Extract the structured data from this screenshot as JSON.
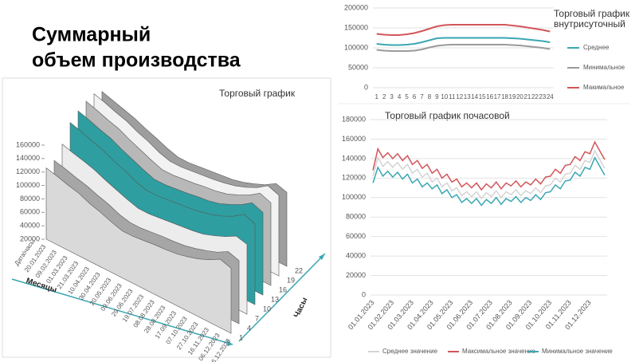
{
  "title_lines": [
    "Суммарный",
    "объем производства"
  ],
  "chart_data": [
    {
      "type": "surface",
      "title": "Торговый график",
      "corner_label": "Дата\\часы",
      "xlabel": "Месяцы",
      "ylabel": "Часы",
      "categories": [
        "20.01.2023",
        "09.02.2023",
        "01.03.2023",
        "21.03.2023",
        "10.04.2023",
        "30.04.2023",
        "20.05.2023",
        "09.06.2023",
        "29.06.2023",
        "19.07.2023",
        "08.08.2023",
        "28.08.2023",
        "17.09.2023",
        "07.10.2023",
        "27.10.2023",
        "16.11.2023",
        "06.12.2023",
        "26.12.2023"
      ],
      "zlim": [
        20000,
        160000
      ],
      "zticks": [
        20000,
        40000,
        60000,
        80000,
        100000,
        120000,
        140000,
        160000
      ],
      "series": [
        {
          "name": "1",
          "values": [
            126000,
            122000,
            117000,
            113000,
            106000,
            101000,
            95000,
            90000,
            90000,
            92000,
            94000,
            95000,
            97000,
            101000,
            106000,
            113000,
            122000,
            117000
          ]
        },
        {
          "name": "4",
          "values": [
            123000,
            119000,
            114000,
            110000,
            104000,
            99000,
            92000,
            88000,
            88000,
            90000,
            92000,
            93000,
            95000,
            99000,
            104000,
            110000,
            119000,
            114000
          ]
        },
        {
          "name": "7",
          "values": [
            133000,
            128000,
            124000,
            119000,
            112000,
            106000,
            100000,
            95000,
            95000,
            97000,
            99000,
            101000,
            103000,
            106000,
            112000,
            119000,
            128000,
            124000
          ]
        },
        {
          "name": "10",
          "values": [
            151000,
            146000,
            140000,
            135000,
            127000,
            121000,
            113000,
            108000,
            108000,
            110000,
            112000,
            114000,
            117000,
            121000,
            127000,
            135000,
            146000,
            140000
          ]
        },
        {
          "name": "13",
          "values": [
            154000,
            149000,
            143000,
            138000,
            130000,
            123000,
            116000,
            110000,
            110000,
            112000,
            114000,
            117000,
            119000,
            123000,
            130000,
            138000,
            149000,
            143000
          ]
        },
        {
          "name": "16",
          "values": [
            154000,
            149000,
            143000,
            138000,
            130000,
            123000,
            116000,
            110000,
            110000,
            112000,
            114000,
            117000,
            119000,
            123000,
            130000,
            138000,
            149000,
            143000
          ]
        },
        {
          "name": "19",
          "values": [
            151000,
            146000,
            140000,
            135000,
            127000,
            121000,
            113000,
            108000,
            108000,
            110000,
            112000,
            114000,
            117000,
            121000,
            127000,
            135000,
            146000,
            140000
          ]
        },
        {
          "name": "22",
          "values": [
            140000,
            135000,
            130000,
            125000,
            118000,
            112000,
            105000,
            100000,
            100000,
            102000,
            104000,
            106000,
            108000,
            112000,
            118000,
            125000,
            135000,
            130000
          ]
        }
      ]
    },
    {
      "type": "line",
      "title_lines": [
        "Торговый график",
        "внутрисуточный"
      ],
      "categories": [
        1,
        2,
        3,
        4,
        5,
        6,
        7,
        8,
        9,
        10,
        11,
        12,
        13,
        14,
        15,
        16,
        17,
        18,
        19,
        20,
        21,
        22,
        23,
        24
      ],
      "ylim": [
        0,
        200000
      ],
      "yticks": [
        0,
        50000,
        100000,
        150000,
        200000
      ],
      "grid": true,
      "legend": "right",
      "series": [
        {
          "name": "Среднее",
          "color": "#3aa7b2",
          "values": [
            110000,
            108000,
            107000,
            107000,
            108000,
            110000,
            114000,
            119000,
            124000,
            125000,
            125000,
            125000,
            125000,
            125000,
            125000,
            125000,
            125000,
            125000,
            124000,
            123000,
            121000,
            119000,
            117000,
            114000
          ]
        },
        {
          "name": "Минимальное",
          "color": "#9a9a9a",
          "values": [
            95000,
            93000,
            92000,
            92000,
            92000,
            93000,
            96000,
            101000,
            105000,
            107000,
            108000,
            108000,
            108000,
            108000,
            108000,
            108000,
            108000,
            108000,
            107000,
            106000,
            104000,
            102000,
            100000,
            97000
          ]
        },
        {
          "name": "Макимальное",
          "color": "#d2555a",
          "values": [
            135000,
            133000,
            132000,
            132000,
            134000,
            137000,
            142000,
            148000,
            154000,
            157000,
            158000,
            158000,
            158000,
            158000,
            158000,
            158000,
            158000,
            158000,
            156000,
            154000,
            151000,
            148000,
            145000,
            141000
          ]
        }
      ]
    },
    {
      "type": "line",
      "title": "Торговый график почасовой",
      "categories": [
        "01.01.2023",
        null,
        null,
        null,
        "01.02.2023",
        null,
        null,
        null,
        "01.03.2023",
        null,
        null,
        null,
        "01.04.2023",
        null,
        null,
        null,
        "01.05.2023",
        null,
        null,
        null,
        "01.06.2023",
        null,
        null,
        null,
        "01.07.2023",
        null,
        null,
        null,
        "01.08.2023",
        null,
        null,
        null,
        "01.09.2023",
        null,
        null,
        null,
        "01.10.2023",
        null,
        null,
        null,
        "01.11.2023",
        null,
        null,
        null,
        "01.12.2023",
        null,
        null,
        null
      ],
      "ylim": [
        0,
        180000
      ],
      "yticks": [
        0,
        20000,
        40000,
        60000,
        80000,
        100000,
        120000,
        140000,
        160000,
        180000
      ],
      "grid": true,
      "legend": "bottom",
      "series": [
        {
          "name": "Среднее значение",
          "color": "#d4d4d4",
          "values": [
            122000,
            141000,
            132000,
            137000,
            131000,
            136000,
            129000,
            134000,
            125000,
            129000,
            121000,
            125000,
            116000,
            120000,
            111000,
            115000,
            107000,
            110000,
            102000,
            106000,
            101000,
            106000,
            99000,
            105000,
            101000,
            107000,
            100000,
            106000,
            103000,
            108000,
            102000,
            107000,
            104000,
            110000,
            105000,
            112000,
            113000,
            120000,
            116000,
            124000,
            125000,
            133000,
            129000,
            138000,
            136000,
            148000,
            139000,
            130000
          ]
        },
        {
          "name": "Максимальное значение",
          "color": "#d2555a",
          "values": [
            128000,
            150000,
            141000,
            146000,
            140000,
            145000,
            138000,
            143000,
            134000,
            138000,
            130000,
            134000,
            125000,
            129000,
            120000,
            124000,
            116000,
            119000,
            111000,
            115000,
            110000,
            115000,
            108000,
            114000,
            110000,
            116000,
            109000,
            115000,
            112000,
            117000,
            111000,
            116000,
            113000,
            119000,
            114000,
            121000,
            122000,
            129000,
            125000,
            133000,
            134000,
            142000,
            138000,
            147000,
            145000,
            157000,
            148000,
            139000
          ]
        },
        {
          "name": "Минимальное значение",
          "color": "#3aa7b2",
          "values": [
            115000,
            131000,
            122000,
            127000,
            121000,
            126000,
            119000,
            124000,
            115000,
            119000,
            111000,
            115000,
            109000,
            113000,
            104000,
            108000,
            100000,
            103000,
            95000,
            99000,
            94000,
            99000,
            92000,
            98000,
            94000,
            100000,
            93000,
            99000,
            96000,
            101000,
            95000,
            100000,
            97000,
            103000,
            98000,
            105000,
            106000,
            113000,
            109000,
            117000,
            118000,
            126000,
            122000,
            131000,
            129000,
            141000,
            132000,
            123000
          ]
        }
      ]
    }
  ]
}
